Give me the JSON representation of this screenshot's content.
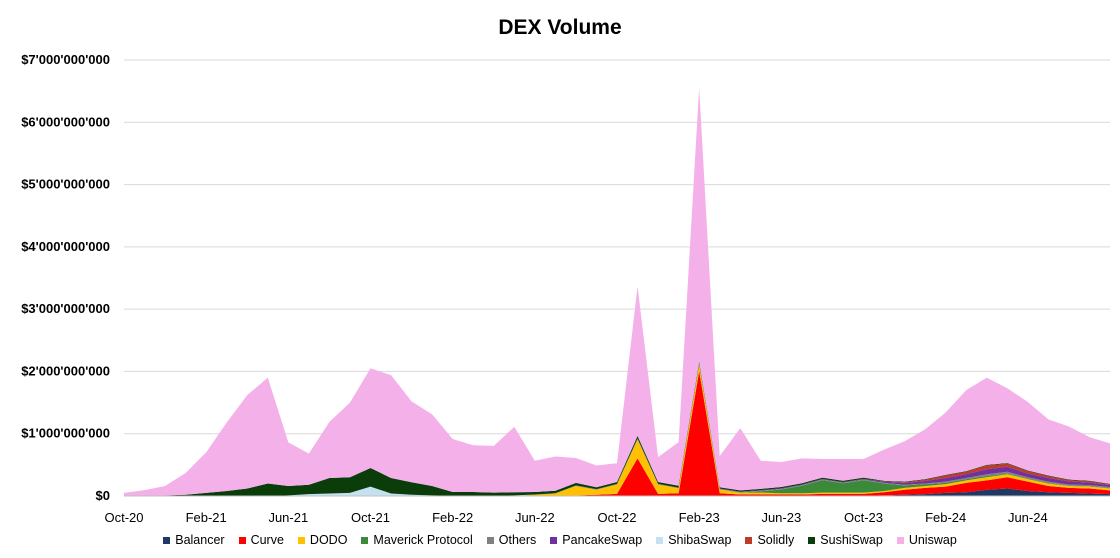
{
  "chart_data": {
    "type": "area",
    "stacked": true,
    "title": "DEX Volume",
    "xlabel": "",
    "ylabel": "",
    "ylim": [
      0,
      7000000000
    ],
    "y_ticks": [
      0,
      1000000000,
      2000000000,
      3000000000,
      4000000000,
      5000000000,
      6000000000,
      7000000000
    ],
    "y_tick_labels": [
      "$0",
      "$1'000'000'000",
      "$2'000'000'000",
      "$3'000'000'000",
      "$4'000'000'000",
      "$5'000'000'000",
      "$6'000'000'000",
      "$7'000'000'000"
    ],
    "x_tick_labels": [
      "Oct-20",
      "Feb-21",
      "Jun-21",
      "Oct-21",
      "Feb-22",
      "Jun-22",
      "Oct-22",
      "Feb-23",
      "Jun-23",
      "Oct-23",
      "Feb-24",
      "Jun-24"
    ],
    "grid": true,
    "legend_position": "bottom",
    "x": [
      "2020-10",
      "2020-11",
      "2020-12",
      "2021-01",
      "2021-02",
      "2021-03",
      "2021-04",
      "2021-05",
      "2021-06",
      "2021-07",
      "2021-08",
      "2021-09",
      "2021-10",
      "2021-11",
      "2021-12",
      "2022-01",
      "2022-02",
      "2022-03",
      "2022-04",
      "2022-05",
      "2022-06",
      "2022-07",
      "2022-08",
      "2022-09",
      "2022-10",
      "2022-11",
      "2022-12",
      "2023-01",
      "2023-02",
      "2023-03",
      "2023-04",
      "2023-05",
      "2023-06",
      "2023-07",
      "2023-08",
      "2023-09",
      "2023-10",
      "2023-11",
      "2023-12",
      "2024-01",
      "2024-02",
      "2024-03",
      "2024-04",
      "2024-05",
      "2024-06",
      "2024-07",
      "2024-08",
      "2024-09",
      "2024-10"
    ],
    "series": [
      {
        "name": "Balancer",
        "color": "#1f3864",
        "values": [
          0,
          0,
          0,
          0,
          0,
          0,
          0,
          0,
          0,
          0,
          0,
          0,
          0,
          0,
          0,
          0,
          0,
          0,
          0,
          0,
          0,
          0,
          0,
          0,
          5000000,
          5000000,
          5000000,
          5000000,
          5000000,
          5000000,
          5000000,
          5000000,
          5000000,
          5000000,
          5000000,
          5000000,
          5000000,
          10000000,
          20000000,
          30000000,
          50000000,
          60000000,
          100000000,
          120000000,
          80000000,
          60000000,
          50000000,
          40000000,
          30000000
        ]
      },
      {
        "name": "Curve",
        "color": "#ff0000",
        "values": [
          0,
          0,
          0,
          0,
          0,
          0,
          0,
          0,
          0,
          0,
          0,
          0,
          0,
          0,
          0,
          0,
          0,
          0,
          0,
          0,
          0,
          0,
          10000000,
          20000000,
          30000000,
          600000000,
          30000000,
          40000000,
          2000000000,
          40000000,
          20000000,
          20000000,
          20000000,
          20000000,
          30000000,
          30000000,
          30000000,
          50000000,
          80000000,
          100000000,
          100000000,
          150000000,
          150000000,
          180000000,
          150000000,
          100000000,
          80000000,
          80000000,
          60000000
        ]
      },
      {
        "name": "DODO",
        "color": "#ffc000",
        "values": [
          0,
          0,
          0,
          0,
          0,
          0,
          0,
          0,
          0,
          0,
          0,
          0,
          0,
          0,
          0,
          0,
          0,
          0,
          0,
          5000000,
          20000000,
          40000000,
          150000000,
          80000000,
          150000000,
          300000000,
          150000000,
          80000000,
          100000000,
          60000000,
          30000000,
          30000000,
          20000000,
          20000000,
          20000000,
          20000000,
          20000000,
          20000000,
          30000000,
          30000000,
          40000000,
          40000000,
          50000000,
          50000000,
          40000000,
          40000000,
          30000000,
          30000000,
          30000000
        ]
      },
      {
        "name": "Maverick Protocol",
        "color": "#3a8a3a",
        "values": [
          0,
          0,
          0,
          0,
          0,
          0,
          0,
          0,
          0,
          0,
          0,
          0,
          0,
          0,
          0,
          0,
          0,
          0,
          0,
          0,
          0,
          0,
          0,
          0,
          0,
          0,
          0,
          0,
          0,
          0,
          0,
          20000000,
          60000000,
          120000000,
          200000000,
          150000000,
          200000000,
          120000000,
          40000000,
          30000000,
          20000000,
          20000000,
          20000000,
          10000000,
          10000000,
          10000000,
          5000000,
          5000000,
          5000000
        ]
      },
      {
        "name": "Others",
        "color": "#808080",
        "values": [
          0,
          0,
          0,
          0,
          0,
          0,
          0,
          0,
          0,
          0,
          0,
          0,
          0,
          0,
          0,
          0,
          0,
          0,
          0,
          0,
          5000000,
          5000000,
          10000000,
          10000000,
          10000000,
          20000000,
          10000000,
          10000000,
          20000000,
          10000000,
          10000000,
          10000000,
          10000000,
          10000000,
          10000000,
          10000000,
          10000000,
          10000000,
          10000000,
          10000000,
          20000000,
          20000000,
          30000000,
          30000000,
          20000000,
          20000000,
          20000000,
          20000000,
          20000000
        ]
      },
      {
        "name": "PancakeSwap",
        "color": "#7030a0",
        "values": [
          0,
          0,
          0,
          0,
          0,
          0,
          0,
          0,
          0,
          0,
          0,
          0,
          0,
          0,
          0,
          0,
          0,
          0,
          0,
          0,
          0,
          0,
          0,
          0,
          0,
          0,
          0,
          0,
          0,
          5000000,
          5000000,
          10000000,
          10000000,
          10000000,
          10000000,
          10000000,
          10000000,
          20000000,
          30000000,
          40000000,
          60000000,
          60000000,
          80000000,
          80000000,
          60000000,
          60000000,
          50000000,
          40000000,
          30000000
        ]
      },
      {
        "name": "ShibaSwap",
        "color": "#c5e0f0",
        "values": [
          0,
          0,
          0,
          0,
          0,
          0,
          0,
          0,
          10000000,
          30000000,
          40000000,
          50000000,
          150000000,
          40000000,
          20000000,
          10000000,
          5000000,
          5000000,
          5000000,
          5000000,
          0,
          0,
          0,
          0,
          0,
          0,
          0,
          0,
          0,
          0,
          0,
          0,
          0,
          0,
          0,
          0,
          0,
          0,
          0,
          0,
          0,
          0,
          0,
          0,
          0,
          0,
          0,
          0,
          0
        ]
      },
      {
        "name": "Solidly",
        "color": "#c0392b",
        "values": [
          0,
          0,
          0,
          0,
          0,
          0,
          0,
          0,
          0,
          0,
          0,
          0,
          0,
          0,
          0,
          0,
          0,
          0,
          0,
          0,
          0,
          0,
          0,
          0,
          0,
          0,
          0,
          0,
          0,
          0,
          0,
          0,
          0,
          0,
          0,
          0,
          0,
          5000000,
          10000000,
          20000000,
          40000000,
          40000000,
          60000000,
          50000000,
          40000000,
          30000000,
          20000000,
          20000000,
          10000000
        ]
      },
      {
        "name": "SushiSwap",
        "color": "#0b3d0b",
        "values": [
          0,
          5000000,
          10000000,
          20000000,
          50000000,
          80000000,
          120000000,
          200000000,
          150000000,
          150000000,
          250000000,
          250000000,
          300000000,
          250000000,
          200000000,
          150000000,
          60000000,
          60000000,
          50000000,
          50000000,
          40000000,
          40000000,
          40000000,
          30000000,
          30000000,
          40000000,
          30000000,
          30000000,
          30000000,
          20000000,
          20000000,
          20000000,
          20000000,
          20000000,
          20000000,
          20000000,
          20000000,
          10000000,
          10000000,
          10000000,
          10000000,
          10000000,
          10000000,
          10000000,
          10000000,
          10000000,
          10000000,
          10000000,
          10000000
        ]
      },
      {
        "name": "Uniswap",
        "color": "#f4b0e8",
        "values": [
          50000000,
          90000000,
          150000000,
          350000000,
          650000000,
          1100000000,
          1500000000,
          1700000000,
          700000000,
          500000000,
          900000000,
          1200000000,
          1600000000,
          1650000000,
          1300000000,
          1150000000,
          850000000,
          750000000,
          750000000,
          1050000000,
          500000000,
          550000000,
          400000000,
          350000000,
          300000000,
          2400000000,
          400000000,
          700000000,
          4400000000,
          500000000,
          1000000000,
          450000000,
          400000000,
          400000000,
          300000000,
          350000000,
          300000000,
          500000000,
          650000000,
          800000000,
          1000000000,
          1300000000,
          1400000000,
          1200000000,
          1100000000,
          900000000,
          850000000,
          700000000,
          650000000
        ]
      }
    ]
  }
}
